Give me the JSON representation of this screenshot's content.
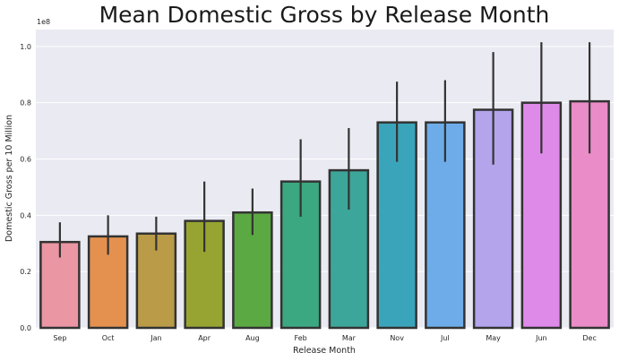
{
  "chart_data": {
    "type": "bar",
    "title": "Mean Domestic Gross by Release Month",
    "xlabel": "Release Month",
    "ylabel": "Domestic Gross per 10 Million",
    "y_offset_label": "1e8",
    "ylim": [
      0,
      1.06
    ],
    "yticks": [
      0.0,
      0.2,
      0.4,
      0.6,
      0.8,
      1.0
    ],
    "ytick_labels": [
      "0.0",
      "0.2",
      "0.4",
      "0.6",
      "0.8",
      "1.0"
    ],
    "grid": true,
    "categories": [
      "Sep",
      "Oct",
      "Jan",
      "Apr",
      "Aug",
      "Feb",
      "Mar",
      "Nov",
      "Jul",
      "May",
      "Jun",
      "Dec"
    ],
    "values": [
      0.305,
      0.325,
      0.335,
      0.38,
      0.41,
      0.52,
      0.56,
      0.73,
      0.73,
      0.775,
      0.8,
      0.805
    ],
    "error_low": [
      0.25,
      0.26,
      0.275,
      0.27,
      0.33,
      0.395,
      0.42,
      0.59,
      0.59,
      0.58,
      0.62,
      0.62
    ],
    "error_high": [
      0.375,
      0.4,
      0.395,
      0.52,
      0.495,
      0.67,
      0.71,
      0.875,
      0.88,
      0.98,
      1.015,
      1.015
    ],
    "colors": [
      "#ea96a3",
      "#e49150",
      "#b99b48",
      "#97a431",
      "#5ba943",
      "#3ba881",
      "#3da69a",
      "#3aa4ba",
      "#6dace8",
      "#b3a4ec",
      "#de8ae9",
      "#e98cc7"
    ]
  }
}
